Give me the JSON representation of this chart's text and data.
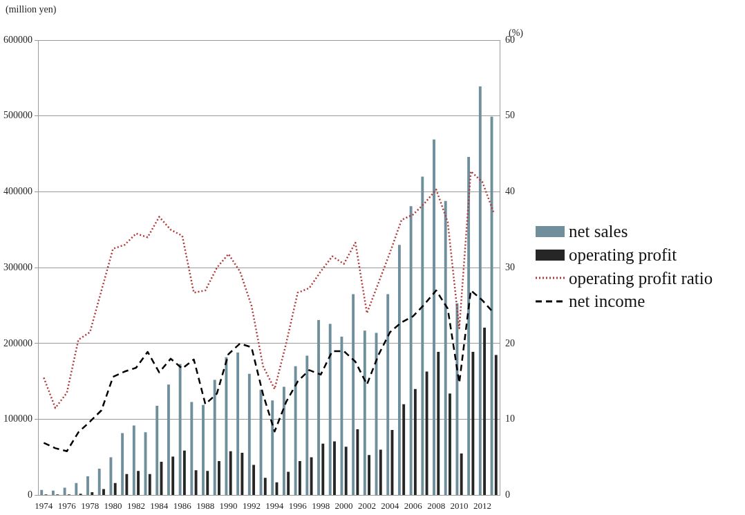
{
  "chart_data": {
    "type": "bar",
    "ylabel": "(million yen)",
    "y2label": "(%)",
    "categories": [
      "1974",
      null,
      "1976",
      null,
      "1978",
      null,
      "1980",
      null,
      "1982",
      null,
      "1984",
      null,
      "1986",
      null,
      "1988",
      null,
      "1990",
      null,
      "1992",
      null,
      "1994",
      null,
      "1996",
      null,
      "1998",
      null,
      "2000",
      null,
      "2002",
      null,
      "2004",
      null,
      "2006",
      null,
      "2008",
      null,
      "2010",
      null,
      "2012",
      null
    ],
    "series": [
      {
        "name": "net sales",
        "color": "#6f8f9c",
        "values": [
          7000,
          6000,
          10000,
          16000,
          25000,
          35000,
          50000,
          82000,
          92000,
          83000,
          118000,
          146000,
          173000,
          123000,
          119000,
          152000,
          182000,
          188000,
          160000,
          139000,
          125000,
          143000,
          170000,
          184000,
          231000,
          226000,
          209000,
          265000,
          217000,
          214000,
          265000,
          330000,
          381000,
          420000,
          469000,
          388000,
          253000,
          446000,
          539000,
          499000
        ]
      },
      {
        "name": "operating profit",
        "color": "#262626",
        "values": [
          1000,
          1000,
          1000,
          2000,
          4000,
          8000,
          16000,
          28000,
          32000,
          28000,
          44000,
          51000,
          59000,
          33000,
          32000,
          45000,
          58000,
          56000,
          40000,
          23000,
          17000,
          31000,
          45000,
          50000,
          68000,
          71000,
          64000,
          87000,
          53000,
          60000,
          86000,
          120000,
          140000,
          163000,
          189000,
          134000,
          55000,
          189000,
          221000,
          185000
        ]
      },
      {
        "name": "operating profit ratio",
        "type": "line",
        "axis": "y2",
        "line_style": "dotted",
        "color": "#b03a3a",
        "values": [
          15.5,
          11.5,
          13.5,
          20.5,
          21.5,
          27,
          32.5,
          33,
          34.5,
          34,
          36.7,
          35,
          34.2,
          26.7,
          27,
          30,
          31.8,
          29.5,
          25,
          17,
          14,
          20,
          26.7,
          27.3,
          29.5,
          31.5,
          30.5,
          33.3,
          24,
          28,
          32,
          36.3,
          37,
          38.5,
          40.3,
          36,
          22,
          42.7,
          41.3,
          37.2
        ]
      },
      {
        "name": "net income",
        "type": "line",
        "line_style": "dashed",
        "color": "#000000",
        "values": [
          69000,
          62000,
          58000,
          83000,
          97000,
          112000,
          156000,
          163000,
          168000,
          189000,
          162000,
          180000,
          167000,
          179000,
          120000,
          134000,
          186000,
          200000,
          195000,
          133000,
          84000,
          123000,
          150000,
          165000,
          159000,
          190000,
          190000,
          176000,
          146000,
          185000,
          215000,
          228000,
          236000,
          252000,
          270000,
          246000,
          148000,
          270000,
          257000,
          240000
        ]
      }
    ],
    "ylim": [
      0,
      600000
    ],
    "yticks": [
      0,
      100000,
      200000,
      300000,
      400000,
      500000,
      600000
    ],
    "y2lim": [
      0,
      60
    ],
    "y2ticks": [
      0,
      10,
      20,
      30,
      40,
      50,
      60
    ],
    "grid": "y",
    "legend": "right",
    "marker": "none"
  }
}
